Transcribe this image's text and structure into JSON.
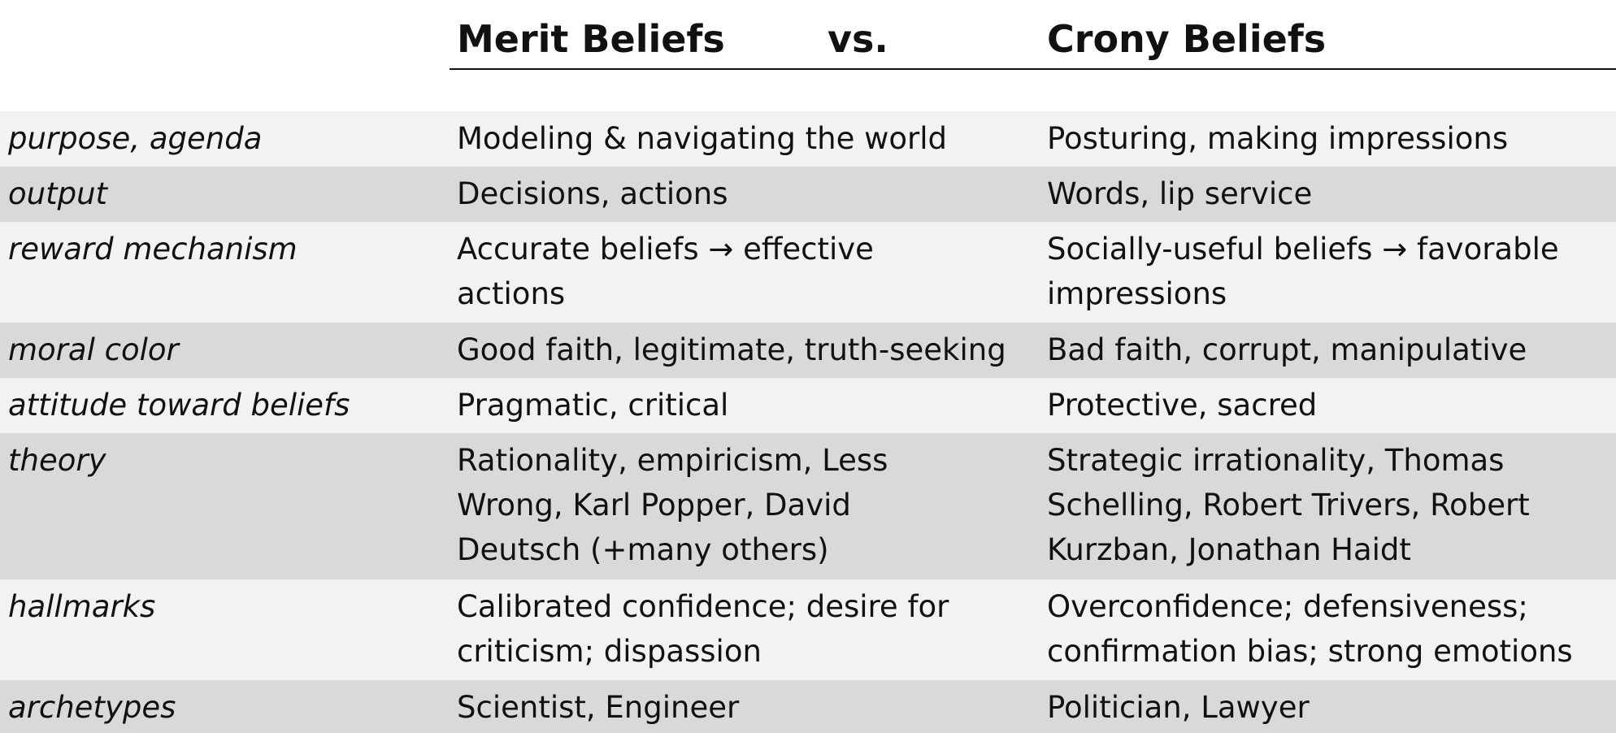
{
  "header": {
    "merit": "Merit Beliefs",
    "vs": "vs.",
    "crony": "Crony Beliefs"
  },
  "rows": [
    {
      "label": "purpose, agenda",
      "merit": "Modeling & navigating the world",
      "crony": "Posturing, making impressions"
    },
    {
      "label": "output",
      "merit": "Decisions, actions",
      "crony": "Words, lip service"
    },
    {
      "label": "reward mechanism",
      "merit": "Accurate beliefs → effective\nactions",
      "crony": "Socially-useful beliefs → favorable\nimpressions"
    },
    {
      "label": "moral color",
      "merit": "Good faith, legitimate, truth-seeking",
      "crony": "Bad faith, corrupt, manipulative"
    },
    {
      "label": "attitude toward beliefs",
      "merit": "Pragmatic, critical",
      "crony": "Protective, sacred"
    },
    {
      "label": "theory",
      "merit": "Rationality, empiricism, Less\nWrong, Karl Popper, David\nDeutsch (+many others)",
      "crony": "Strategic irrationality, Thomas\nSchelling, Robert Trivers, Robert\nKurzban, Jonathan Haidt"
    },
    {
      "label": "hallmarks",
      "merit": "Calibrated confidence; desire for\ncriticism; dispassion",
      "crony": "Overconfidence; defensiveness;\nconfirmation bias; strong emotions"
    },
    {
      "label": "archetypes",
      "merit": "Scientist, Engineer",
      "crony": "Politician, Lawyer"
    }
  ]
}
